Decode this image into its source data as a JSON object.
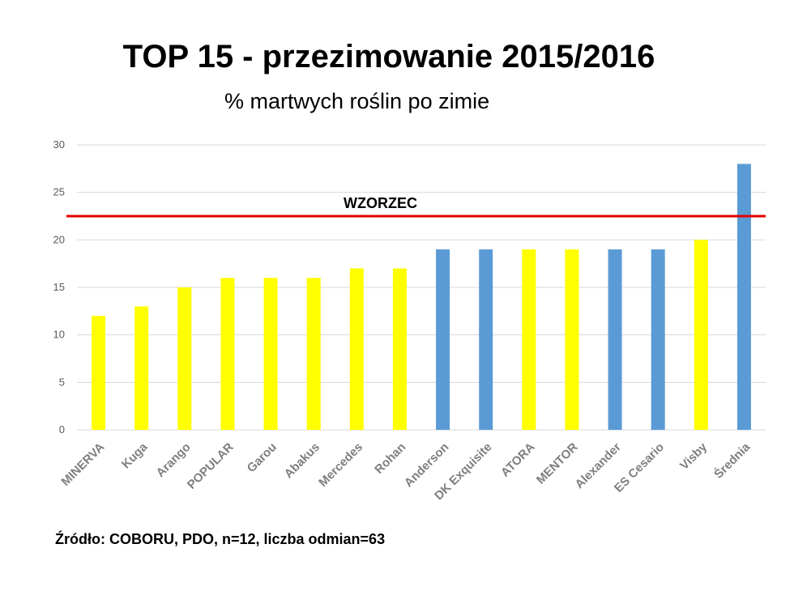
{
  "title": "TOP 15 - przezimowanie 2015/2016",
  "subtitle": "% martwych roślin po zimie",
  "source": "Źródło: COBORU, PDO, n=12, liczba odmian=63",
  "colors": {
    "yellow": "#ffff00",
    "blue": "#5b9bd5",
    "reference": "#e00000",
    "grid": "#d9d9d9"
  },
  "chart_data": {
    "type": "bar",
    "title": "TOP 15 - przezimowanie 2015/2016",
    "subtitle": "% martwych roślin po zimie",
    "categories": [
      "MINERVA",
      "Kuga",
      "Arango",
      "POPULAR",
      "Garou",
      "Abakus",
      "Mercedes",
      "Rohan",
      "Anderson",
      "DK Exquisite",
      "ATORA",
      "MENTOR",
      "Alexander",
      "ES Cesario",
      "Visby",
      "Średnia"
    ],
    "values": [
      12,
      13,
      15,
      16,
      16,
      16,
      17,
      17,
      19,
      19,
      19,
      19,
      19,
      19,
      20,
      28
    ],
    "bar_colors": [
      "yellow",
      "yellow",
      "yellow",
      "yellow",
      "yellow",
      "yellow",
      "yellow",
      "yellow",
      "blue",
      "blue",
      "yellow",
      "yellow",
      "blue",
      "blue",
      "yellow",
      "blue"
    ],
    "ylim": [
      0,
      30
    ],
    "yticks": [
      0,
      5,
      10,
      15,
      20,
      25,
      30
    ],
    "grid": true,
    "reference_line": {
      "label": "WZORZEC",
      "value": 22.5
    },
    "xlabel": "",
    "ylabel": ""
  }
}
